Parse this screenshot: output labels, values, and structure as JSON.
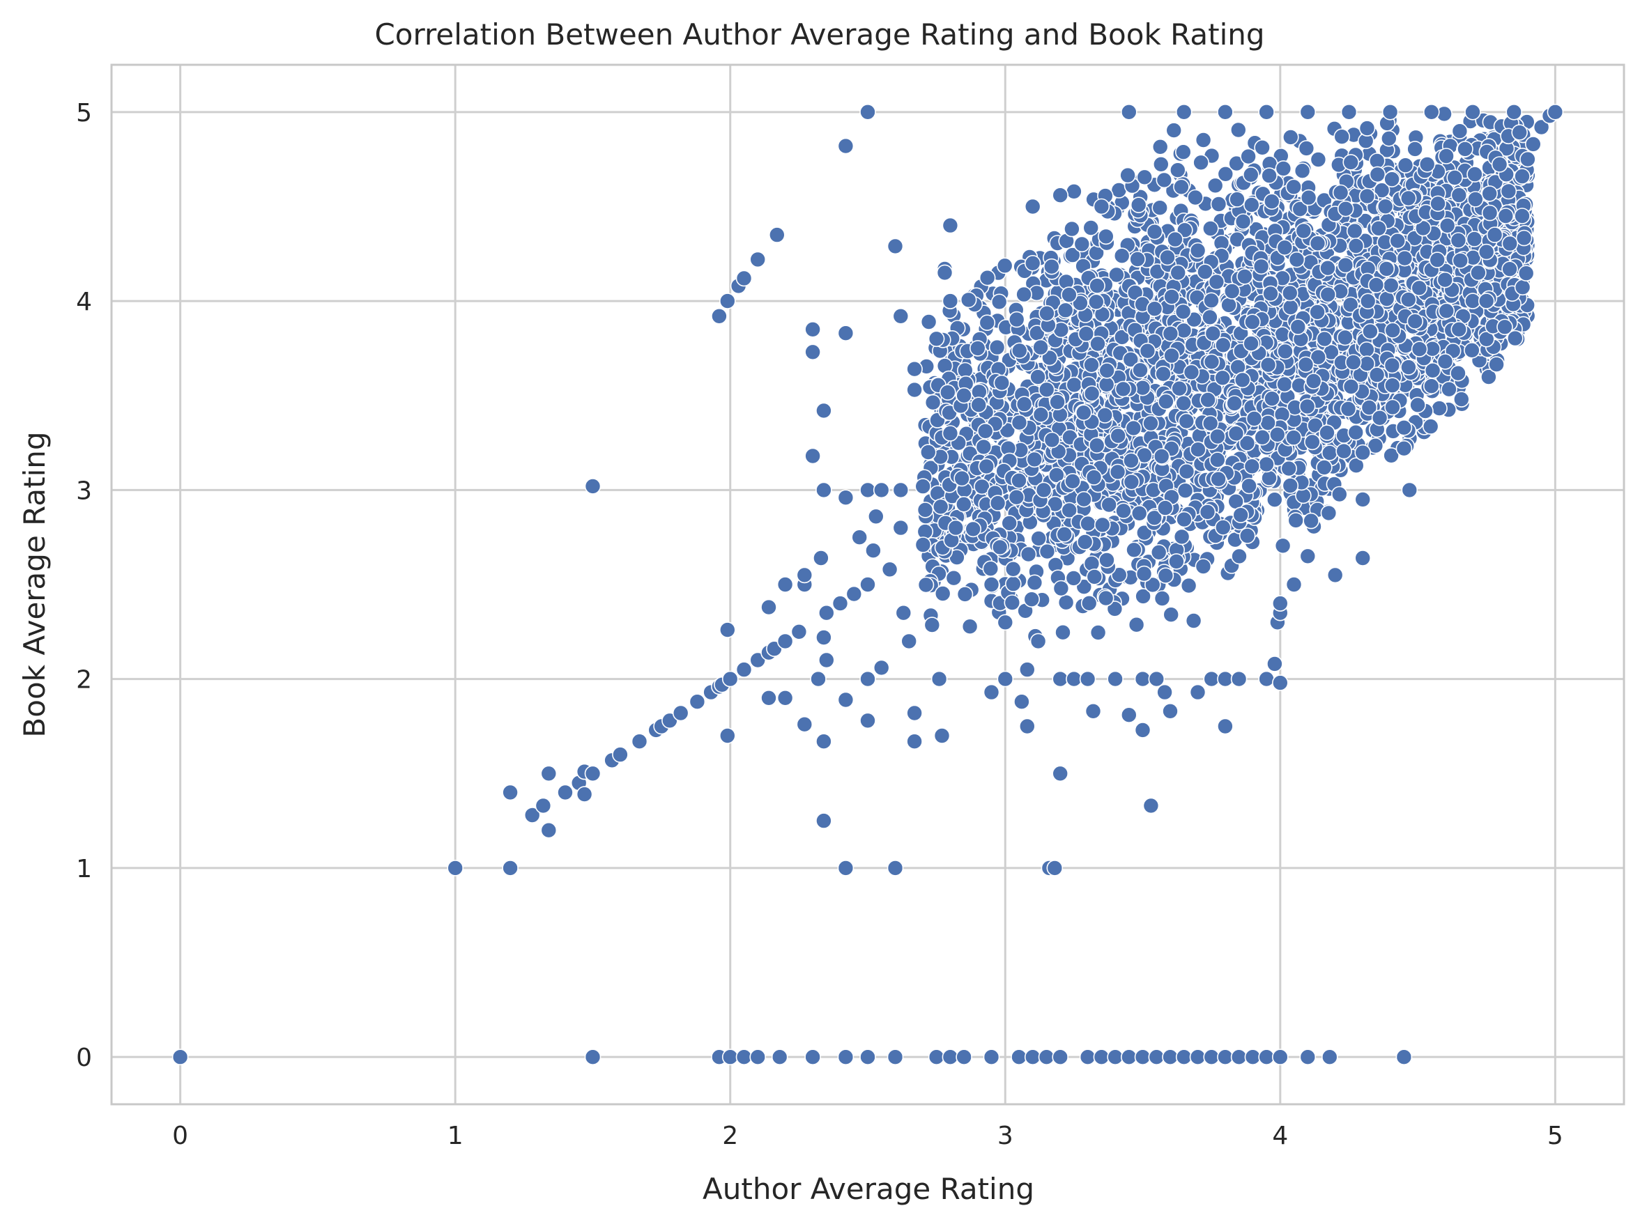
{
  "chart_data": {
    "type": "scatter",
    "title": "Correlation Between Author Average Rating and Book Rating",
    "xlabel": "Author Average Rating",
    "ylabel": "Book Average Rating",
    "xlim": [
      -0.25,
      5.25
    ],
    "ylim": [
      -0.25,
      5.25
    ],
    "xticks": [
      0,
      1,
      2,
      3,
      4,
      5
    ],
    "yticks": [
      0,
      1,
      2,
      3,
      4,
      5
    ],
    "xtick_labels": [
      "0",
      "1",
      "2",
      "3",
      "4",
      "5"
    ],
    "ytick_labels": [
      "0",
      "1",
      "2",
      "3",
      "4",
      "5"
    ],
    "grid": true,
    "legend": "none",
    "colors": {
      "marker": "#4c72b0",
      "marker_edge": "#ffffff",
      "grid": "#cfcfcf"
    },
    "series": [
      {
        "points": [
          [
            0.0,
            0.0
          ],
          [
            1.0,
            1.0
          ],
          [
            1.2,
            1.0
          ],
          [
            1.2,
            1.4
          ],
          [
            1.28,
            1.28
          ],
          [
            1.32,
            1.33
          ],
          [
            1.34,
            1.2
          ],
          [
            1.34,
            1.5
          ],
          [
            1.4,
            1.4
          ],
          [
            1.45,
            1.45
          ],
          [
            1.47,
            1.51
          ],
          [
            1.47,
            1.39
          ],
          [
            1.5,
            1.5
          ],
          [
            1.5,
            3.02
          ],
          [
            1.5,
            0.0
          ],
          [
            1.57,
            1.57
          ],
          [
            1.6,
            1.6
          ],
          [
            1.67,
            1.67
          ],
          [
            1.73,
            1.73
          ],
          [
            1.75,
            1.75
          ],
          [
            1.78,
            1.78
          ],
          [
            1.82,
            1.82
          ],
          [
            1.88,
            1.88
          ],
          [
            1.93,
            1.93
          ],
          [
            1.96,
            1.96
          ],
          [
            1.97,
            1.97
          ],
          [
            2.0,
            2.0
          ],
          [
            1.96,
            3.92
          ],
          [
            1.99,
            4.0
          ],
          [
            2.03,
            4.08
          ],
          [
            2.05,
            4.12
          ],
          [
            2.1,
            4.22
          ],
          [
            2.17,
            4.35
          ],
          [
            1.99,
            2.26
          ],
          [
            1.99,
            1.7
          ],
          [
            2.05,
            2.05
          ],
          [
            2.1,
            2.1
          ],
          [
            2.14,
            2.14
          ],
          [
            2.16,
            2.16
          ],
          [
            2.2,
            2.2
          ],
          [
            2.25,
            2.25
          ],
          [
            2.14,
            2.38
          ],
          [
            2.14,
            1.9
          ],
          [
            2.2,
            1.9
          ],
          [
            2.2,
            2.5
          ],
          [
            2.27,
            2.5
          ],
          [
            2.27,
            2.55
          ],
          [
            2.27,
            1.76
          ],
          [
            2.3,
            3.85
          ],
          [
            2.3,
            3.73
          ],
          [
            2.3,
            3.18
          ],
          [
            2.32,
            2.0
          ],
          [
            2.33,
            2.64
          ],
          [
            2.34,
            3.0
          ],
          [
            2.34,
            3.42
          ],
          [
            2.34,
            2.22
          ],
          [
            2.35,
            2.1
          ],
          [
            2.34,
            1.67
          ],
          [
            2.34,
            1.25
          ],
          [
            2.35,
            2.35
          ],
          [
            2.4,
            2.4
          ],
          [
            2.42,
            2.96
          ],
          [
            2.42,
            3.83
          ],
          [
            2.42,
            4.82
          ],
          [
            2.42,
            1.89
          ],
          [
            2.42,
            1.0
          ],
          [
            2.45,
            2.45
          ],
          [
            2.47,
            2.75
          ],
          [
            2.5,
            5.0
          ],
          [
            2.5,
            3.0
          ],
          [
            2.5,
            2.5
          ],
          [
            2.5,
            2.0
          ],
          [
            2.5,
            1.78
          ],
          [
            2.52,
            2.68
          ],
          [
            2.53,
            2.86
          ],
          [
            2.55,
            2.06
          ],
          [
            2.55,
            3.0
          ],
          [
            2.58,
            2.58
          ],
          [
            2.6,
            4.29
          ],
          [
            2.6,
            1.0
          ],
          [
            2.62,
            3.92
          ],
          [
            2.62,
            3.0
          ],
          [
            2.62,
            2.8
          ],
          [
            2.63,
            2.35
          ],
          [
            2.65,
            2.2
          ],
          [
            2.67,
            3.64
          ],
          [
            2.67,
            3.53
          ],
          [
            2.67,
            1.82
          ],
          [
            2.67,
            1.67
          ],
          [
            2.72,
            3.2
          ],
          [
            2.75,
            3.8
          ],
          [
            2.76,
            2.0
          ],
          [
            2.77,
            1.7
          ],
          [
            2.78,
            4.17
          ],
          [
            2.78,
            4.15
          ],
          [
            2.8,
            4.4
          ],
          [
            2.8,
            4.0
          ],
          [
            2.8,
            3.3
          ],
          [
            2.82,
            2.8
          ],
          [
            2.85,
            3.5
          ],
          [
            2.9,
            3.75
          ],
          [
            2.95,
            2.5
          ],
          [
            2.95,
            1.93
          ],
          [
            3.0,
            2.0
          ],
          [
            3.0,
            2.3
          ],
          [
            3.05,
            3.05
          ],
          [
            3.06,
            1.88
          ],
          [
            3.08,
            2.05
          ],
          [
            3.08,
            1.75
          ],
          [
            3.1,
            4.2
          ],
          [
            3.12,
            2.2
          ],
          [
            3.14,
            3.0
          ],
          [
            3.16,
            1.0
          ],
          [
            3.18,
            1.0
          ],
          [
            3.2,
            1.5
          ],
          [
            3.2,
            2.0
          ],
          [
            3.25,
            2.0
          ],
          [
            3.3,
            2.0
          ],
          [
            3.32,
            1.83
          ],
          [
            3.4,
            2.0
          ],
          [
            3.45,
            1.81
          ],
          [
            3.5,
            1.73
          ],
          [
            3.5,
            2.0
          ],
          [
            3.53,
            1.33
          ],
          [
            3.55,
            2.0
          ],
          [
            3.58,
            1.93
          ],
          [
            3.6,
            1.83
          ],
          [
            3.7,
            1.93
          ],
          [
            3.75,
            2.0
          ],
          [
            3.8,
            2.0
          ],
          [
            3.8,
            1.75
          ],
          [
            3.85,
            2.0
          ],
          [
            3.95,
            2.0
          ],
          [
            3.98,
            2.08
          ],
          [
            4.0,
            1.98
          ],
          [
            3.99,
            2.3
          ],
          [
            4.0,
            2.35
          ],
          [
            4.0,
            2.4
          ],
          [
            4.05,
            2.5
          ],
          [
            4.1,
            2.65
          ],
          [
            4.2,
            2.55
          ],
          [
            4.3,
            2.64
          ],
          [
            4.3,
            2.95
          ],
          [
            4.47,
            3.0
          ],
          [
            4.45,
            3.22
          ],
          [
            4.45,
            3.33
          ],
          [
            4.5,
            3.45
          ],
          [
            4.55,
            3.55
          ],
          [
            4.6,
            3.68
          ],
          [
            4.65,
            3.85
          ],
          [
            4.7,
            4.0
          ],
          [
            4.75,
            4.0
          ],
          [
            4.72,
            4.15
          ],
          [
            4.75,
            4.26
          ],
          [
            4.78,
            4.35
          ],
          [
            4.82,
            4.45
          ],
          [
            4.88,
            4.45
          ],
          [
            4.88,
            4.66
          ],
          [
            4.9,
            4.75
          ],
          [
            4.92,
            4.83
          ],
          [
            4.95,
            4.92
          ],
          [
            4.98,
            4.98
          ],
          [
            5.0,
            5.0
          ],
          [
            3.45,
            5.0
          ],
          [
            3.65,
            5.0
          ],
          [
            3.8,
            5.0
          ],
          [
            3.95,
            5.0
          ],
          [
            4.1,
            5.0
          ],
          [
            4.25,
            5.0
          ],
          [
            4.4,
            5.0
          ],
          [
            4.55,
            5.0
          ],
          [
            4.7,
            5.0
          ],
          [
            4.85,
            5.0
          ],
          [
            3.35,
            4.5
          ],
          [
            3.25,
            4.58
          ],
          [
            3.2,
            4.56
          ],
          [
            3.1,
            4.5
          ],
          [
            1.96,
            0.0
          ],
          [
            2.0,
            0.0
          ],
          [
            2.05,
            0.0
          ],
          [
            2.1,
            0.0
          ],
          [
            2.18,
            0.0
          ],
          [
            2.3,
            0.0
          ],
          [
            2.42,
            0.0
          ],
          [
            2.5,
            0.0
          ],
          [
            2.6,
            0.0
          ],
          [
            2.75,
            0.0
          ],
          [
            2.8,
            0.0
          ],
          [
            2.85,
            0.0
          ],
          [
            2.95,
            0.0
          ],
          [
            3.05,
            0.0
          ],
          [
            3.1,
            0.0
          ],
          [
            3.15,
            0.0
          ],
          [
            3.2,
            0.0
          ],
          [
            3.3,
            0.0
          ],
          [
            3.35,
            0.0
          ],
          [
            3.4,
            0.0
          ],
          [
            3.45,
            0.0
          ],
          [
            3.5,
            0.0
          ],
          [
            3.55,
            0.0
          ],
          [
            3.6,
            0.0
          ],
          [
            3.65,
            0.0
          ],
          [
            3.7,
            0.0
          ],
          [
            3.75,
            0.0
          ],
          [
            3.8,
            0.0
          ],
          [
            3.85,
            0.0
          ],
          [
            3.9,
            0.0
          ],
          [
            3.95,
            0.0
          ],
          [
            4.0,
            0.0
          ],
          [
            4.1,
            0.0
          ],
          [
            4.18,
            0.0
          ],
          [
            4.45,
            0.0
          ]
        ],
        "dense_region": {
          "count": 3600,
          "x_range": [
            2.7,
            4.9
          ],
          "y_min_rule": "max(2.2, 1.25 * x - 2.4)",
          "y_max_rule": "min(5.0, 1.25 * x + 0.55)"
        }
      }
    ]
  }
}
